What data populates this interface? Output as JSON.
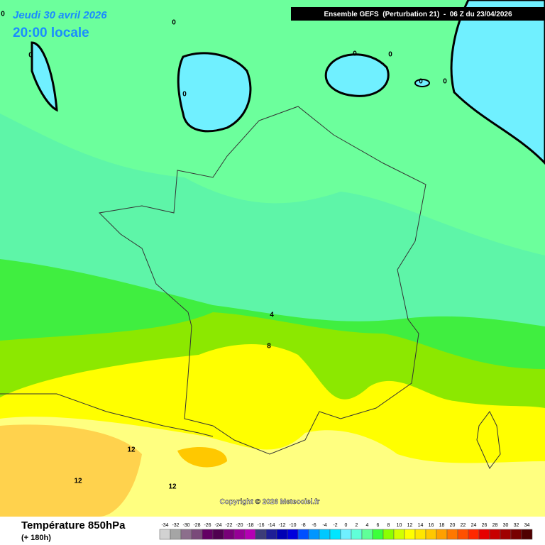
{
  "header": {
    "date": "Jeudi 30 avril 2026",
    "local_time": "20:00 locale",
    "run": "Ensemble GEFS  (Perturbation 21)  -  06 Z du 23/04/2026"
  },
  "contour_labels": [
    0,
    0,
    0,
    0,
    0,
    0,
    0,
    0,
    4,
    8,
    12,
    12,
    12
  ],
  "copyright": "Copyright © 2026 Meteociel.fr",
  "footer": {
    "title": "Température 850hPa",
    "subtitle": "(+ 180h)"
  },
  "legend": {
    "labels": [
      -34,
      -32,
      -30,
      -28,
      -26,
      -24,
      -22,
      -20,
      -18,
      -16,
      -14,
      -12,
      -10,
      -8,
      -6,
      -4,
      -2,
      0,
      2,
      4,
      6,
      8,
      10,
      12,
      14,
      16,
      18,
      20,
      22,
      24,
      26,
      28,
      30,
      32,
      34
    ],
    "colors": [
      "#d2d2d2",
      "#a5a5a5",
      "#8c6e8c",
      "#7a4a7a",
      "#640064",
      "#500050",
      "#780078",
      "#960096",
      "#b400b4",
      "#3c3c78",
      "#1e1e96",
      "#0000b4",
      "#0000dc",
      "#0050ff",
      "#0096ff",
      "#00c8ff",
      "#00e6ff",
      "#70f0ff",
      "#60ffd8",
      "#60ff98",
      "#3cff3c",
      "#8cff00",
      "#d2ff00",
      "#ffff00",
      "#ffe600",
      "#ffc800",
      "#ffa000",
      "#ff7800",
      "#ff5000",
      "#ff2800",
      "#e60000",
      "#c80000",
      "#a00000",
      "#780000",
      "#500000"
    ]
  }
}
